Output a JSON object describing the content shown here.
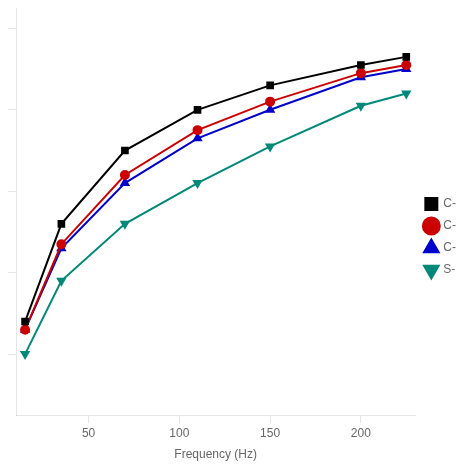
{
  "chart_data": {
    "type": "line",
    "xlabel": "Frequency (Hz)",
    "series": [
      {
        "name": "C-",
        "color": "#000000",
        "marker": "square",
        "x": [
          15,
          35,
          70,
          110,
          150,
          200,
          225
        ],
        "values": [
          0.28,
          0.52,
          0.7,
          0.8,
          0.86,
          0.91,
          0.93
        ]
      },
      {
        "name": "C-",
        "color": "#cc0000",
        "marker": "circle",
        "x": [
          15,
          35,
          70,
          110,
          150,
          200,
          225
        ],
        "values": [
          0.26,
          0.47,
          0.64,
          0.75,
          0.82,
          0.89,
          0.91
        ]
      },
      {
        "name": "C-",
        "color": "#0000cc",
        "marker": "triangle_up",
        "x": [
          15,
          35,
          70,
          110,
          150,
          200,
          225
        ],
        "values": [
          0.26,
          0.46,
          0.62,
          0.73,
          0.8,
          0.88,
          0.9
        ]
      },
      {
        "name": "S-",
        "color": "#008878",
        "marker": "triangle_down",
        "x": [
          15,
          35,
          70,
          110,
          150,
          200,
          225
        ],
        "values": [
          0.2,
          0.38,
          0.52,
          0.62,
          0.71,
          0.81,
          0.84
        ]
      }
    ],
    "xlim": [
      10,
      230
    ],
    "xticks": [
      50,
      100,
      150,
      200
    ],
    "ylim": [
      0.05,
      1.05
    ],
    "yticks": [
      0.2,
      0.4,
      0.6,
      0.8,
      1.0
    ],
    "tick_labels": "x",
    "grid": false,
    "legend": "right"
  }
}
